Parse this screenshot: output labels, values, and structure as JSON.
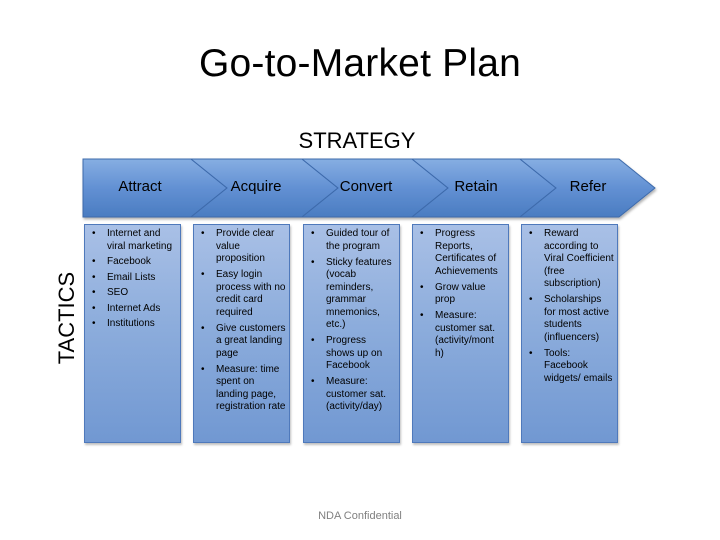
{
  "title": "Go-to-Market Plan",
  "strategy_label": "STRATEGY",
  "tactics_label": "TACTICS",
  "footer": "NDA Confidential",
  "colors": {
    "chevron_fill_top": "#7ea6dc",
    "chevron_fill_bottom": "#4a7cc1",
    "chevron_edge": "#3d6aab",
    "box_fill": "#8daddc",
    "box_border": "#4f79bb"
  },
  "stages": [
    {
      "label": "Attract",
      "tactics": [
        "Internet and viral marketing",
        "Facebook",
        "Email Lists",
        "SEO",
        "Internet Ads",
        "Institutions"
      ]
    },
    {
      "label": "Acquire",
      "tactics": [
        "Provide clear value proposition",
        "Easy login process with no credit card required",
        "Give customers a great landing page",
        "Measure: time spent on landing page, registration rate"
      ]
    },
    {
      "label": "Convert",
      "tactics": [
        "Guided tour of the program",
        "Sticky features (vocab reminders, grammar mnemonics, etc.)",
        "Progress shows up on Facebook",
        "Measure: customer sat. (activity/day)"
      ]
    },
    {
      "label": "Retain",
      "tactics": [
        "Progress Reports, Certificates of Achievements",
        "Grow value prop",
        "Measure: customer sat. (activity/mont h)"
      ]
    },
    {
      "label": "Refer",
      "tactics": [
        "Reward according to Viral Coefficient (free subscription)",
        "Scholarships for most active students (influencers)",
        "Tools: Facebook widgets/ emails"
      ]
    }
  ]
}
